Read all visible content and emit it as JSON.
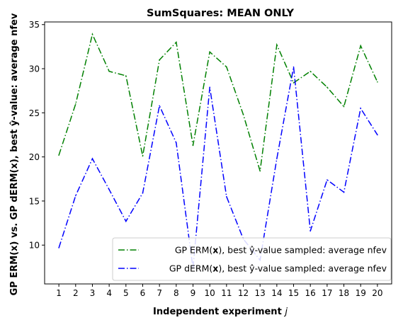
{
  "chart_data": {
    "type": "line",
    "title": "SumSquares: MEAN ONLY",
    "xlabel_main": "Independent experiment ",
    "xlabel_var": "j",
    "ylabel": "GP ERM(x) vs. GP dERM(x), best ŷ-value: average nfev",
    "x": [
      1,
      2,
      3,
      4,
      5,
      6,
      7,
      8,
      9,
      10,
      11,
      12,
      13,
      14,
      15,
      16,
      17,
      18,
      19,
      20
    ],
    "xticks": [
      "1",
      "2",
      "3",
      "4",
      "5",
      "6",
      "7",
      "8",
      "9",
      "10",
      "11",
      "12",
      "13",
      "14",
      "15",
      "16",
      "17",
      "18",
      "19",
      "20"
    ],
    "ylim": [
      5.6,
      35.3
    ],
    "yticks": [
      10,
      15,
      20,
      25,
      30,
      35
    ],
    "ytick_labels": [
      "10",
      "15",
      "20",
      "25",
      "30",
      "35"
    ],
    "grid": false,
    "legend_position": "lower-right",
    "series": [
      {
        "name": "GP ERM(x), best ŷ-value sampled: average nfev",
        "legend_pre": "GP ERM(",
        "legend_bold": "x",
        "legend_post": "), best ŷ-value sampled: average nfev",
        "color": "#008000",
        "values": [
          20.2,
          26.0,
          33.9,
          29.7,
          29.2,
          20.1,
          31.0,
          33.0,
          21.3,
          31.9,
          30.2,
          24.8,
          18.4,
          32.7,
          28.4,
          29.7,
          27.9,
          25.7,
          32.6,
          28.5
        ]
      },
      {
        "name": "GP dERM(x), best ŷ-value sampled: average nfev",
        "legend_pre": "GP dERM(",
        "legend_bold": "x",
        "legend_post": "), best ŷ-value sampled: average nfev",
        "color": "#0000ff",
        "values": [
          9.7,
          15.6,
          19.8,
          16.3,
          12.7,
          15.9,
          25.8,
          21.6,
          7.4,
          27.9,
          15.5,
          10.7,
          8.3,
          19.8,
          30.2,
          11.6,
          17.4,
          16.0,
          25.5,
          22.5
        ]
      }
    ]
  }
}
